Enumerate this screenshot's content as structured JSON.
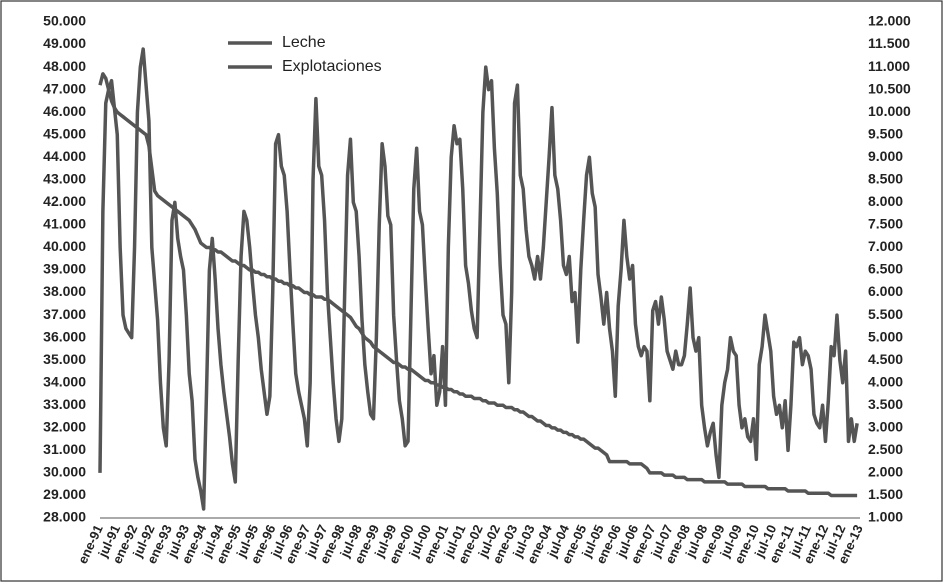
{
  "chart_data": {
    "type": "line",
    "categories": [
      "ene-91",
      null,
      null,
      null,
      null,
      null,
      "jul-91",
      null,
      null,
      null,
      null,
      null,
      "ene-92",
      null,
      null,
      null,
      null,
      null,
      "jul-92",
      null,
      null,
      null,
      null,
      null,
      "ene-93",
      null,
      null,
      null,
      null,
      null,
      "jul-93",
      null,
      null,
      null,
      null,
      null,
      "ene-94",
      null,
      null,
      null,
      null,
      null,
      "jul-94",
      null,
      null,
      null,
      null,
      null,
      "ene-95",
      null,
      null,
      null,
      null,
      null,
      "jul-95",
      null,
      null,
      null,
      null,
      null,
      "ene-96",
      null,
      null,
      null,
      null,
      null,
      "jul-96",
      null,
      null,
      null,
      null,
      null,
      "ene-97",
      null,
      null,
      null,
      null,
      null,
      "jul-97",
      null,
      null,
      null,
      null,
      null,
      "ene-98",
      null,
      null,
      null,
      null,
      null,
      "jul-98",
      null,
      null,
      null,
      null,
      null,
      "ene-99",
      null,
      null,
      null,
      null,
      null,
      "jul-99",
      null,
      null,
      null,
      null,
      null,
      "ene-00",
      null,
      null,
      null,
      null,
      null,
      "jul-00",
      null,
      null,
      null,
      null,
      null,
      "ene-01",
      null,
      null,
      null,
      null,
      null,
      "jul-01",
      null,
      null,
      null,
      null,
      null,
      "ene-02",
      null,
      null,
      null,
      null,
      null,
      "jul-02",
      null,
      null,
      null,
      null,
      null,
      "ene-03",
      null,
      null,
      null,
      null,
      null,
      "jul-03",
      null,
      null,
      null,
      null,
      null,
      "ene-04",
      null,
      null,
      null,
      null,
      null,
      "jul-04",
      null,
      null,
      null,
      null,
      null,
      "ene-05",
      null,
      null,
      null,
      null,
      null,
      "jul-05",
      null,
      null,
      null,
      null,
      null,
      "ene-06",
      null,
      null,
      null,
      null,
      null,
      "jul-06",
      null,
      null,
      null,
      null,
      null,
      "ene-07",
      null,
      null,
      null,
      null,
      null,
      "jul-07",
      null,
      null,
      null,
      null,
      null,
      "ene-08",
      null,
      null,
      null,
      null,
      null,
      "jul-08",
      null,
      null,
      null,
      null,
      null,
      "ene-09",
      null,
      null,
      null,
      null,
      null,
      "jul-09",
      null,
      null,
      null,
      null,
      null,
      "ene-10",
      null,
      null,
      null,
      null,
      null,
      "jul-10",
      null,
      null,
      null,
      null,
      null,
      "ene-11",
      null,
      null,
      null,
      null,
      null,
      "jul-11",
      null,
      null,
      null,
      null,
      null,
      "ene-12",
      null,
      null,
      null,
      null,
      null,
      "jul-12",
      null,
      null,
      null,
      null,
      null,
      "ene-13"
    ],
    "series": [
      {
        "name": "Leche",
        "color": "#555555",
        "axis": "y2",
        "values": [
          2000,
          7800,
          10200,
          10500,
          10700,
          10100,
          9500,
          7000,
          5500,
          5200,
          5100,
          5000,
          7000,
          10000,
          11000,
          11400,
          10600,
          9800,
          7000,
          6200,
          5400,
          4000,
          3000,
          2600,
          4500,
          7600,
          8000,
          7200,
          6800,
          6500,
          5500,
          4200,
          3600,
          2300,
          1900,
          1600,
          1200,
          3800,
          6500,
          7200,
          6300,
          5200,
          4400,
          3800,
          3300,
          2800,
          2200,
          1800,
          4500,
          6800,
          7800,
          7600,
          7000,
          6200,
          5500,
          5000,
          4300,
          3800,
          3300,
          3700,
          6000,
          9300,
          9500,
          8800,
          8600,
          7800,
          6500,
          5300,
          4200,
          3800,
          3500,
          3200,
          2600,
          4000,
          8500,
          10300,
          8800,
          8600,
          7600,
          6000,
          5000,
          4000,
          3200,
          2700,
          3200,
          6000,
          8600,
          9400,
          8000,
          7800,
          6800,
          5400,
          4400,
          3800,
          3300,
          3200,
          5000,
          7500,
          9300,
          8800,
          7700,
          7500,
          5500,
          4500,
          3600,
          3200,
          2600,
          2700,
          5500,
          8300,
          9200,
          7800,
          7500,
          6300,
          5200,
          4200,
          4600,
          3500,
          3800,
          4800,
          3500,
          7000,
          9000,
          9700,
          9300,
          9400,
          8300,
          6600,
          6200,
          5600,
          5200,
          5000,
          7500,
          10000,
          11000,
          10500,
          10700,
          9200,
          8200,
          6600,
          5500,
          5300,
          4000,
          6000,
          10200,
          10600,
          8600,
          8300,
          7400,
          6800,
          6600,
          6300,
          6800,
          6300,
          7000,
          8000,
          9000,
          10100,
          8600,
          8300,
          7600,
          6600,
          6400,
          6800,
          5800,
          6000,
          4900,
          6500,
          7600,
          8600,
          9000,
          8200,
          7900,
          6400,
          5900,
          5300,
          6000,
          5200,
          4700,
          3700,
          5700,
          6500,
          7600,
          6800,
          6300,
          6600,
          5300,
          4800,
          4600,
          4800,
          4700,
          3600,
          5600,
          5800,
          5300,
          5900,
          5400,
          4700,
          4500,
          4300,
          4700,
          4400,
          4400,
          4600,
          5300,
          6100,
          5000,
          4700,
          5000,
          3500,
          3000,
          2600,
          2900,
          3100,
          2400,
          1900,
          3500,
          4000,
          4300,
          5000,
          4700,
          4600,
          3500,
          3000,
          3200,
          2800,
          2700,
          3200,
          2300,
          4400,
          4800,
          5500,
          5100,
          4700,
          3700,
          3300,
          3500,
          3000,
          3600,
          2500,
          3500,
          4900,
          4800,
          5000,
          4400,
          4700,
          4600,
          4300,
          3300,
          3100,
          3000,
          3500,
          2700,
          3600,
          4800,
          4600,
          5500,
          4500,
          4000,
          4700,
          2700,
          3200,
          2700,
          3100,
          null
        ]
      },
      {
        "name": "Explotaciones",
        "color": "#555555",
        "axis": "y",
        "values": [
          47200,
          47700,
          47500,
          47000,
          46500,
          46200,
          46000,
          45900,
          45800,
          45700,
          45600,
          45500,
          45400,
          45300,
          45200,
          45100,
          45000,
          44500,
          43500,
          42500,
          42300,
          42200,
          42100,
          42000,
          41900,
          41800,
          41700,
          41600,
          41500,
          41400,
          41300,
          41200,
          41000,
          40800,
          40500,
          40200,
          40100,
          40000,
          40000,
          39900,
          39900,
          39800,
          39800,
          39700,
          39600,
          39500,
          39400,
          39400,
          39300,
          39200,
          39200,
          39100,
          39000,
          39000,
          38900,
          38900,
          38800,
          38800,
          38700,
          38700,
          38600,
          38600,
          38500,
          38500,
          38400,
          38400,
          38300,
          38300,
          38200,
          38200,
          38100,
          38000,
          38000,
          37900,
          37900,
          37800,
          37800,
          37800,
          37700,
          37700,
          37600,
          37500,
          37400,
          37300,
          37200,
          37100,
          37000,
          36900,
          36700,
          36500,
          36400,
          36200,
          36000,
          35900,
          35800,
          35600,
          35500,
          35400,
          35300,
          35200,
          35100,
          35000,
          34900,
          34900,
          34800,
          34700,
          34700,
          34600,
          34600,
          34500,
          34400,
          34300,
          34200,
          34100,
          34100,
          34000,
          34000,
          33900,
          33900,
          33800,
          33800,
          33700,
          33700,
          33600,
          33600,
          33500,
          33500,
          33400,
          33400,
          33400,
          33300,
          33300,
          33300,
          33200,
          33200,
          33100,
          33100,
          33100,
          33000,
          33000,
          33000,
          32900,
          32900,
          32900,
          32800,
          32800,
          32700,
          32700,
          32600,
          32500,
          32500,
          32400,
          32300,
          32300,
          32200,
          32100,
          32100,
          32000,
          32000,
          31900,
          31900,
          31800,
          31800,
          31700,
          31700,
          31600,
          31600,
          31500,
          31500,
          31400,
          31300,
          31200,
          31100,
          31100,
          31000,
          30900,
          30800,
          30500,
          30500,
          30500,
          30500,
          30500,
          30500,
          30500,
          30400,
          30400,
          30400,
          30400,
          30400,
          30300,
          30200,
          30000,
          30000,
          30000,
          30000,
          30000,
          29900,
          29900,
          29900,
          29900,
          29800,
          29800,
          29800,
          29800,
          29700,
          29700,
          29700,
          29700,
          29700,
          29700,
          29600,
          29600,
          29600,
          29600,
          29600,
          29600,
          29600,
          29600,
          29500,
          29500,
          29500,
          29500,
          29500,
          29500,
          29400,
          29400,
          29400,
          29400,
          29400,
          29400,
          29400,
          29400,
          29300,
          29300,
          29300,
          29300,
          29300,
          29300,
          29300,
          29200,
          29200,
          29200,
          29200,
          29200,
          29200,
          29200,
          29100,
          29100,
          29100,
          29100,
          29100,
          29100,
          29100,
          29100,
          29000,
          29000,
          29000,
          29000,
          29000,
          29000,
          29000,
          29000,
          29000,
          29000,
          null
        ]
      }
    ],
    "ylim": [
      28000,
      50000
    ],
    "yticks": [
      {
        "value": 28000,
        "label": "28.000"
      },
      {
        "value": 29000,
        "label": "29.000"
      },
      {
        "value": 30000,
        "label": "30.000"
      },
      {
        "value": 31000,
        "label": "31.000"
      },
      {
        "value": 32000,
        "label": "32.000"
      },
      {
        "value": 33000,
        "label": "33.000"
      },
      {
        "value": 34000,
        "label": "34.000"
      },
      {
        "value": 35000,
        "label": "35.000"
      },
      {
        "value": 36000,
        "label": "36.000"
      },
      {
        "value": 37000,
        "label": "37.000"
      },
      {
        "value": 38000,
        "label": "38.000"
      },
      {
        "value": 39000,
        "label": "39.000"
      },
      {
        "value": 40000,
        "label": "40.000"
      },
      {
        "value": 41000,
        "label": "41.000"
      },
      {
        "value": 42000,
        "label": "42.000"
      },
      {
        "value": 43000,
        "label": "43.000"
      },
      {
        "value": 44000,
        "label": "44.000"
      },
      {
        "value": 45000,
        "label": "45.000"
      },
      {
        "value": 46000,
        "label": "46.000"
      },
      {
        "value": 47000,
        "label": "47.000"
      },
      {
        "value": 48000,
        "label": "48.000"
      },
      {
        "value": 49000,
        "label": "49.000"
      },
      {
        "value": 50000,
        "label": "50.000"
      }
    ],
    "y2lim": [
      1000,
      12000
    ],
    "y2ticks": [
      {
        "value": 1000,
        "label": "1.000"
      },
      {
        "value": 1500,
        "label": "1.500"
      },
      {
        "value": 2000,
        "label": "2.000"
      },
      {
        "value": 2500,
        "label": "2.500"
      },
      {
        "value": 3000,
        "label": "3.000"
      },
      {
        "value": 3500,
        "label": "3.500"
      },
      {
        "value": 4000,
        "label": "4.000"
      },
      {
        "value": 4500,
        "label": "4.500"
      },
      {
        "value": 5000,
        "label": "5.000"
      },
      {
        "value": 5500,
        "label": "5.500"
      },
      {
        "value": 6000,
        "label": "6.000"
      },
      {
        "value": 6500,
        "label": "6.500"
      },
      {
        "value": 7000,
        "label": "7.000"
      },
      {
        "value": 7500,
        "label": "7.500"
      },
      {
        "value": 8000,
        "label": "8.000"
      },
      {
        "value": 8500,
        "label": "8.500"
      },
      {
        "value": 9000,
        "label": "9.000"
      },
      {
        "value": 9500,
        "label": "9.500"
      },
      {
        "value": 10000,
        "label": "10.000"
      },
      {
        "value": 10500,
        "label": "10.500"
      },
      {
        "value": 11000,
        "label": "11.000"
      },
      {
        "value": 11500,
        "label": "11.500"
      },
      {
        "value": 12000,
        "label": "12.000"
      }
    ],
    "grid": false,
    "legend": "top-left"
  }
}
